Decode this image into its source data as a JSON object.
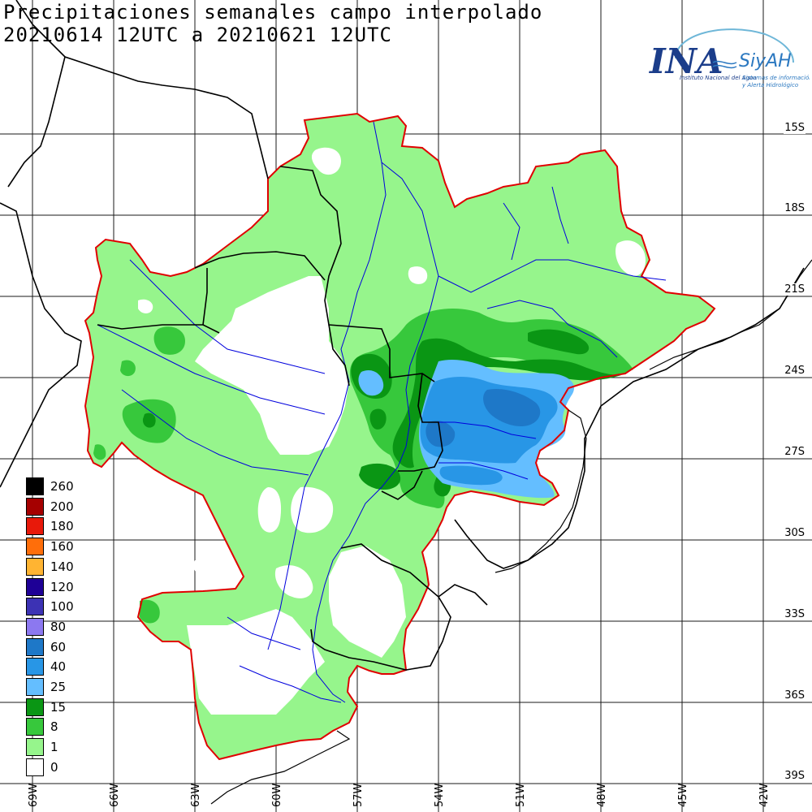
{
  "title": {
    "line1": "Precipitaciones semanales campo interpolado",
    "line2": "20210614 12UTC a 20210621 12UTC"
  },
  "logo": {
    "brand": "INA",
    "product": "SiyAH",
    "subtitle": "Instituto Nacional del Agua",
    "product_subtitle_1": "Sistemas de información",
    "product_subtitle_2": "y Alerta Hidrológico"
  },
  "legend": {
    "items": [
      {
        "label": "260",
        "color": "#000000"
      },
      {
        "label": "200",
        "color": "#a50000"
      },
      {
        "label": "180",
        "color": "#e8190a"
      },
      {
        "label": "160",
        "color": "#ff6e0a"
      },
      {
        "label": "140",
        "color": "#ffb432"
      },
      {
        "label": "120",
        "color": "#1e0096"
      },
      {
        "label": "100",
        "color": "#3c32b4"
      },
      {
        "label": "80",
        "color": "#8c78f0"
      },
      {
        "label": "60",
        "color": "#1e78c8"
      },
      {
        "label": "40",
        "color": "#2896e6"
      },
      {
        "label": "25",
        "color": "#64beff"
      },
      {
        "label": "15",
        "color": "#0a9614"
      },
      {
        "label": "8",
        "color": "#37c83c"
      },
      {
        "label": "1",
        "color": "#96f58c"
      },
      {
        "label": "0",
        "color": "#ffffff"
      }
    ]
  },
  "latitudes": [
    "15S",
    "18S",
    "21S",
    "24S",
    "27S",
    "30S",
    "33S",
    "36S",
    "39S"
  ],
  "longitudes": [
    "69W",
    "66W",
    "63W",
    "60W",
    "57W",
    "54W",
    "51W",
    "48W",
    "45W",
    "42W"
  ],
  "colors": {
    "basin_outline": "#e00000",
    "border": "#000000",
    "river": "#0000dd",
    "grid": "#000000"
  }
}
